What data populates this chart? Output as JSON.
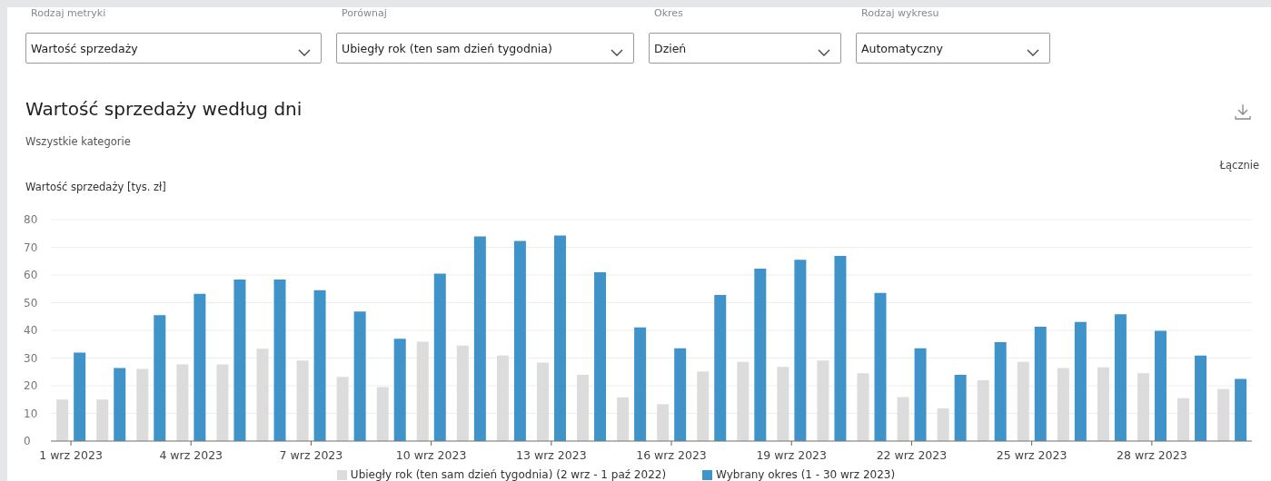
{
  "chart_data": {
    "type": "bar",
    "title": "Wartość sprzedaży według dni",
    "subtitle": "Wszystkie kategorie",
    "ylabel": "Wartość sprzedaży [tys. zł]",
    "annotations": [
      "Rodzaj metryki",
      "Wartość sprzedaży",
      "Porównaj",
      "Ubiegły rok (ten sam dzień tygodnia)",
      "Okres",
      "Dzień",
      "Rodzaj wykresu",
      "Automatyczny",
      "Łącznie"
    ],
    "categories": [
      "1 wrz 2023",
      null,
      null,
      "4 wrz 2023",
      null,
      null,
      "7 wrz 2023",
      null,
      null,
      "10 wrz 2023",
      null,
      null,
      "13 wrz 2023",
      null,
      null,
      "16 wrz 2023",
      null,
      null,
      "19 wrz 2023",
      null,
      null,
      "22 wrz 2023",
      null,
      null,
      "25 wrz 2023",
      null,
      null,
      "28 wrz 2023",
      null,
      null
    ],
    "series": [
      {
        "name": "Ubiegły rok (ten sam dzień tygodnia) (2 wrz - 1 paź 2022)",
        "color": "#dcdcdc",
        "values": [
          15,
          15,
          26.1,
          27.7,
          27.7,
          33.4,
          29.1,
          23.2,
          19.5,
          35.9,
          34.5,
          30.9,
          28.4,
          23.9,
          15.8,
          13.3,
          25.2,
          28.6,
          26.8,
          29.1,
          24.5,
          15.9,
          11.8,
          22,
          28.6,
          26.4,
          26.6,
          24.5,
          15.5,
          18.8
        ]
      },
      {
        "name": "Wybrany okres (1 - 30 wrz 2023)",
        "color": "#3f93c8",
        "values": [
          32,
          26.4,
          45.5,
          53.2,
          58.4,
          58.4,
          54.5,
          46.8,
          37,
          60.5,
          73.9,
          72.3,
          74.3,
          61,
          41.1,
          33.5,
          52.8,
          62.3,
          65.5,
          66.9,
          53.5,
          33.5,
          23.9,
          35.7,
          41.3,
          43,
          45.8,
          39.8,
          30.9,
          22.5
        ]
      }
    ],
    "ylim": [
      0,
      80
    ],
    "yticks": [
      0,
      10,
      20,
      30,
      40,
      50,
      60,
      70,
      80
    ],
    "grid": "y",
    "legend": "bottom"
  }
}
